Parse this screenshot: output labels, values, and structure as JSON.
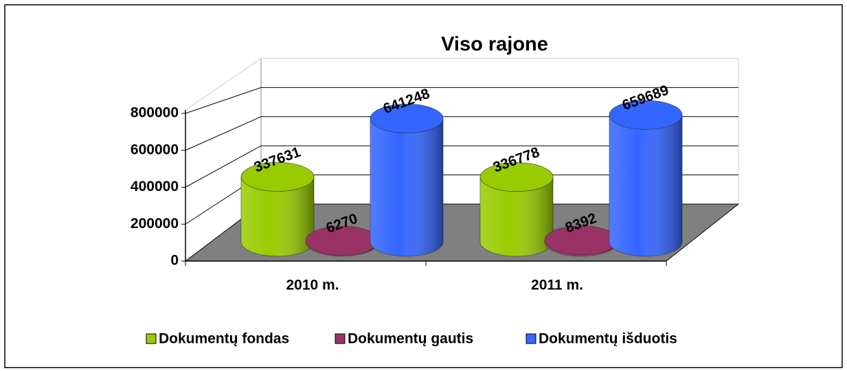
{
  "chart_data": {
    "type": "bar3d",
    "title": "Viso rajone",
    "categories": [
      "2010 m.",
      "2011 m."
    ],
    "series": [
      {
        "name": "Dokumentų fondas",
        "color": "#99cc00",
        "values": [
          337631,
          336778
        ]
      },
      {
        "name": "Dokumentų gautis",
        "color": "#993366",
        "values": [
          6270,
          8392
        ]
      },
      {
        "name": "Dokumentų išduotis",
        "color": "#3366ff",
        "values": [
          641248,
          659689
        ]
      }
    ],
    "ylim": [
      0,
      1000000
    ],
    "yticks": [
      0,
      200000,
      400000,
      600000,
      800000
    ],
    "grid": true,
    "legend": "bottom"
  }
}
